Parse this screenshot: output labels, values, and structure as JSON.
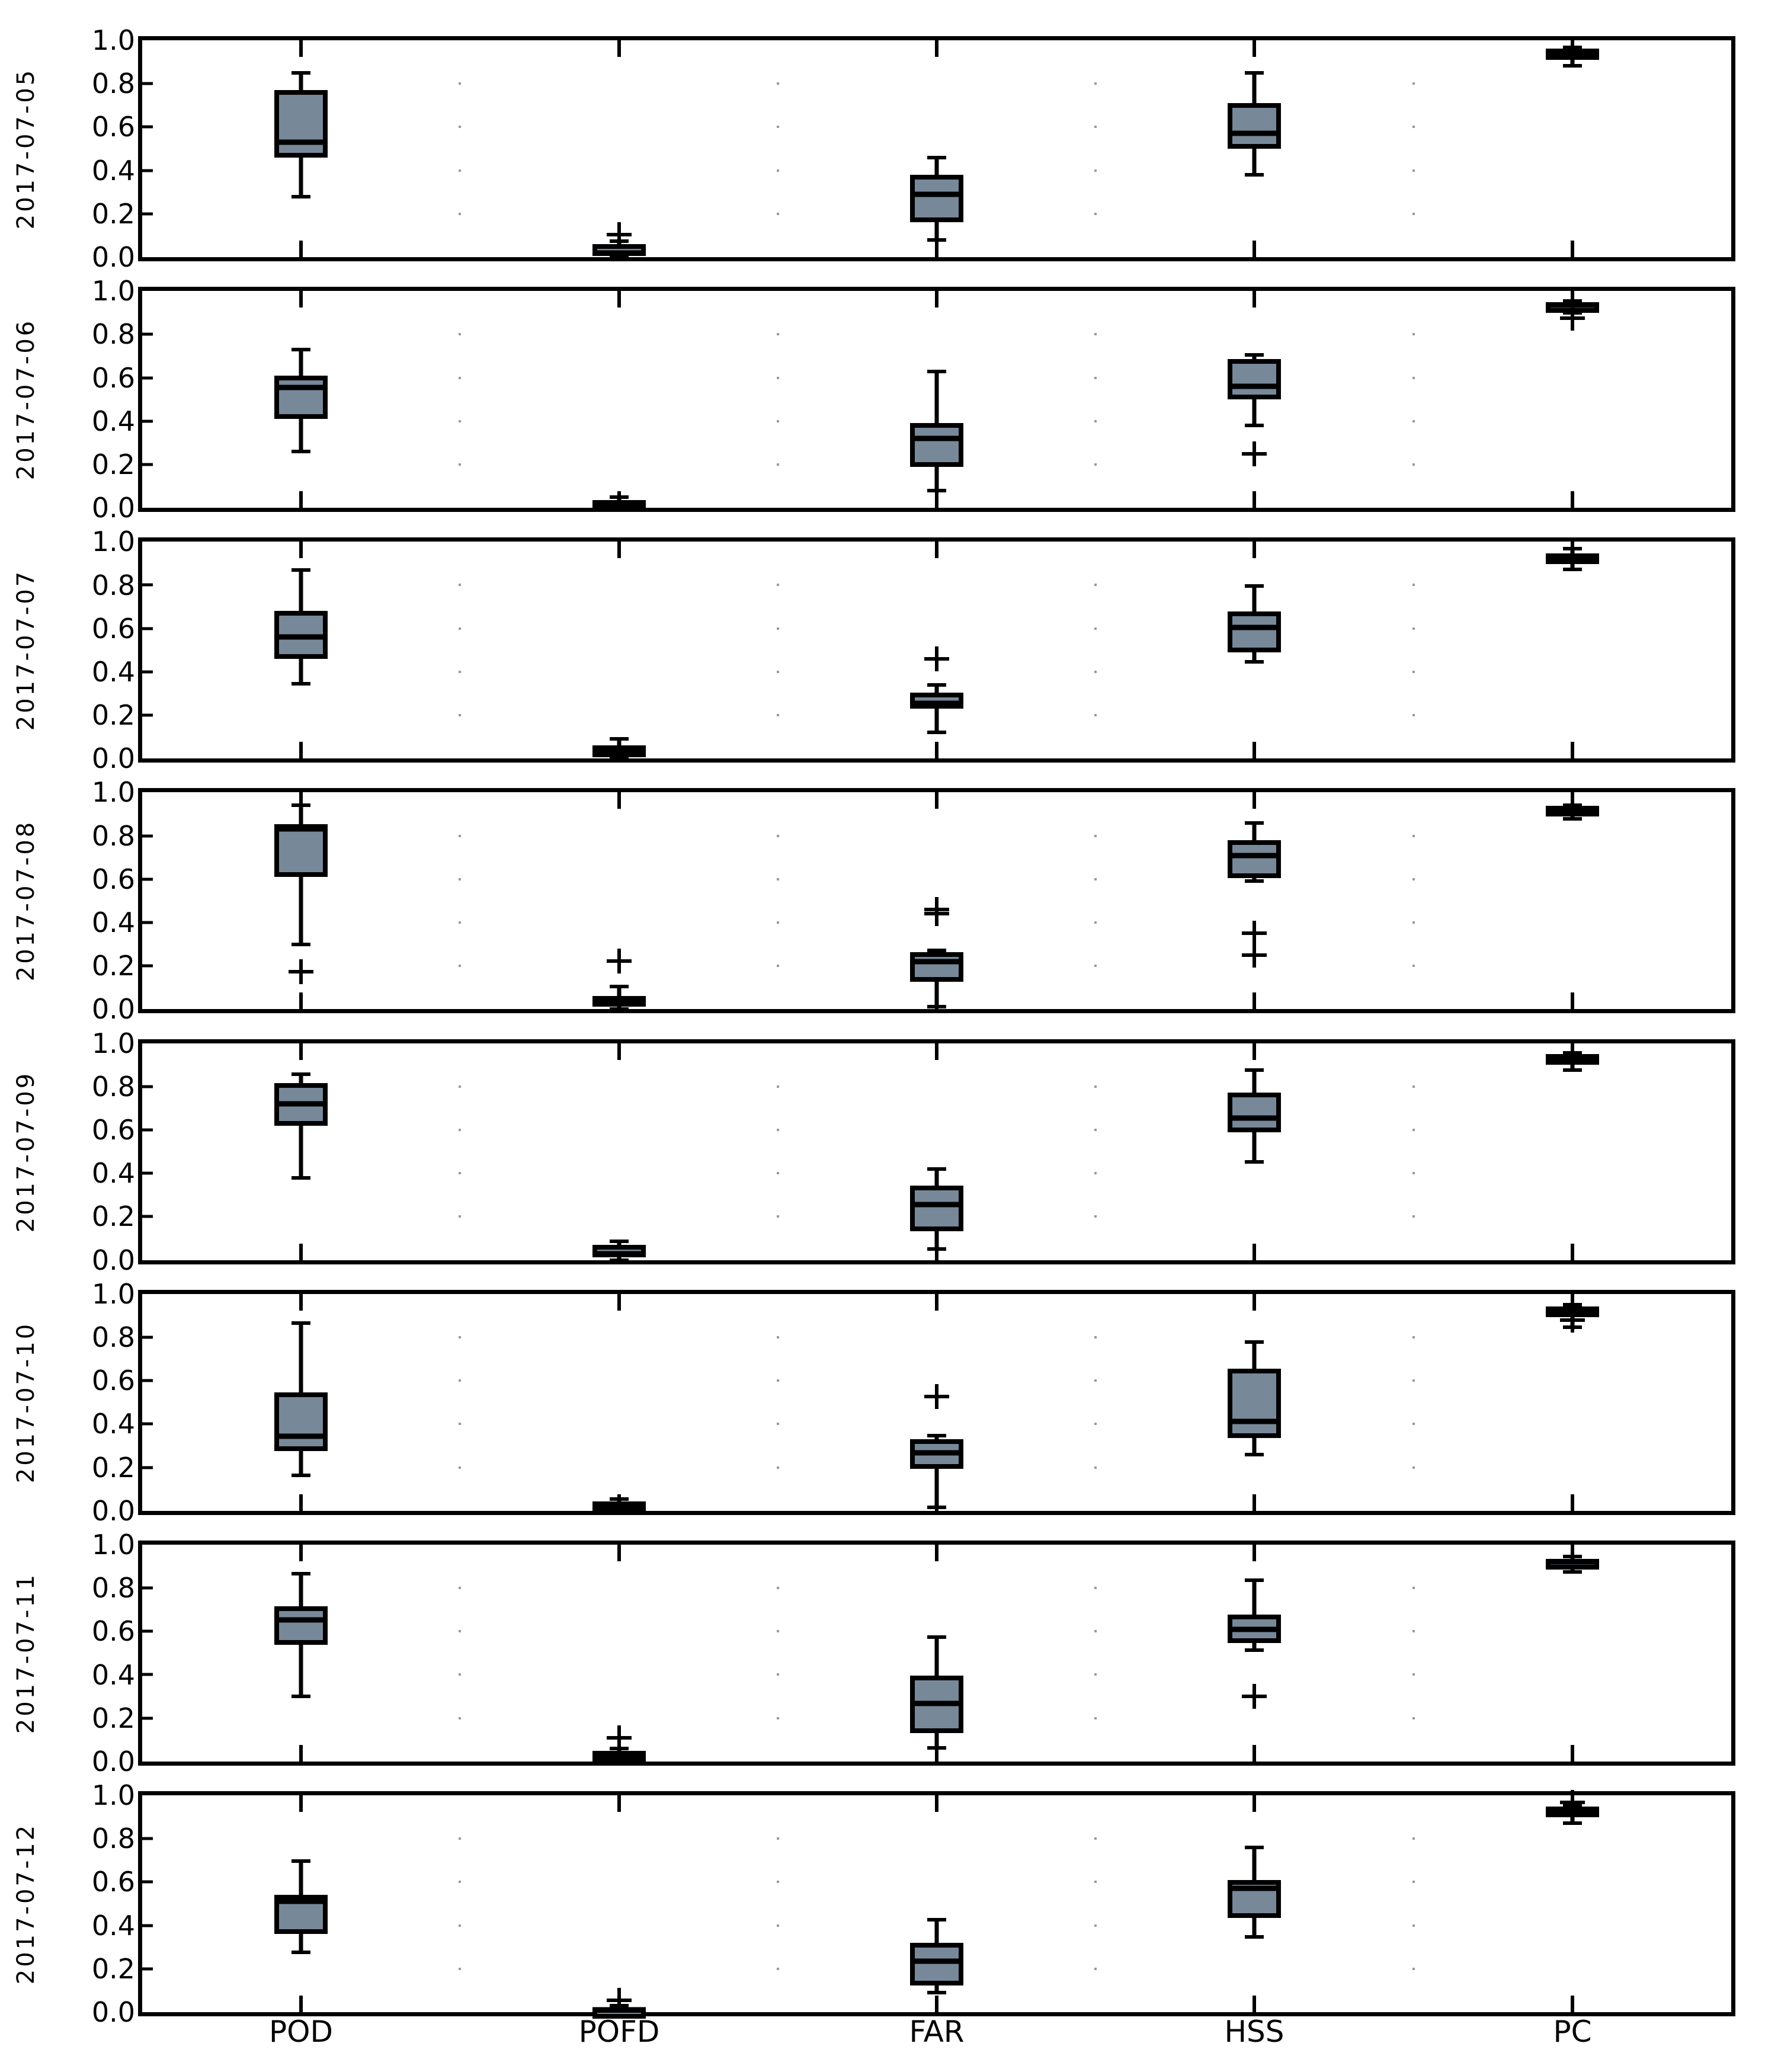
{
  "figure": {
    "background": "#ffffff"
  },
  "chart_data": {
    "type": "boxplot",
    "layout": "8 stacked daily panels, shared x categories",
    "categories": [
      "POD",
      "POFD",
      "FAR",
      "HSS",
      "PC"
    ],
    "ylim": [
      0.0,
      1.0
    ],
    "yticks": [
      "1.0",
      "0.8",
      "0.6",
      "0.4",
      "0.2",
      "0.0"
    ],
    "grid": "sparse dotted grid at 0.2 intervals",
    "box_fill": "#778899",
    "line_color": "#000000",
    "panels": [
      {
        "date": "2017-07-05",
        "boxes": [
          {
            "whislo": 0.28,
            "q1": 0.46,
            "med": 0.53,
            "q3": 0.77,
            "whishi": 0.85,
            "fliers": []
          },
          {
            "whislo": 0.0,
            "q1": 0.005,
            "med": 0.02,
            "q3": 0.06,
            "whishi": 0.075,
            "fliers": [
              0.105
            ]
          },
          {
            "whislo": 0.08,
            "q1": 0.16,
            "med": 0.29,
            "q3": 0.38,
            "whishi": 0.46,
            "fliers": []
          },
          {
            "whislo": 0.38,
            "q1": 0.5,
            "med": 0.57,
            "q3": 0.71,
            "whishi": 0.85,
            "fliers": []
          },
          {
            "whislo": 0.883,
            "q1": 0.91,
            "med": 0.943,
            "q3": 0.962,
            "whishi": 0.967,
            "fliers": []
          }
        ]
      },
      {
        "date": "2017-07-06",
        "boxes": [
          {
            "whislo": 0.26,
            "q1": 0.41,
            "med": 0.555,
            "q3": 0.61,
            "whishi": 0.73,
            "fliers": []
          },
          {
            "whislo": 0.0,
            "q1": 0.005,
            "med": 0.015,
            "q3": 0.035,
            "whishi": 0.05,
            "fliers": []
          },
          {
            "whislo": 0.08,
            "q1": 0.19,
            "med": 0.32,
            "q3": 0.39,
            "whishi": 0.63,
            "fliers": []
          },
          {
            "whislo": 0.38,
            "q1": 0.5,
            "med": 0.56,
            "q3": 0.685,
            "whishi": 0.705,
            "fliers": [
              0.25
            ]
          },
          {
            "whislo": 0.9,
            "q1": 0.915,
            "med": 0.935,
            "q3": 0.948,
            "whishi": 0.955,
            "fliers": [
              0.875
            ]
          }
        ]
      },
      {
        "date": "2017-07-07",
        "boxes": [
          {
            "whislo": 0.345,
            "q1": 0.46,
            "med": 0.56,
            "q3": 0.68,
            "whishi": 0.87,
            "fliers": []
          },
          {
            "whislo": 0.0,
            "q1": 0.005,
            "med": 0.03,
            "q3": 0.06,
            "whishi": 0.09,
            "fliers": []
          },
          {
            "whislo": 0.12,
            "q1": 0.23,
            "med": 0.255,
            "q3": 0.305,
            "whishi": 0.34,
            "fliers": [
              0.46
            ]
          },
          {
            "whislo": 0.447,
            "q1": 0.49,
            "med": 0.605,
            "q3": 0.678,
            "whishi": 0.795,
            "fliers": []
          },
          {
            "whislo": 0.872,
            "q1": 0.899,
            "med": 0.913,
            "q3": 0.945,
            "whishi": 0.967,
            "fliers": []
          }
        ]
      },
      {
        "date": "2017-07-08",
        "boxes": [
          {
            "whislo": 0.3,
            "q1": 0.61,
            "med": 0.833,
            "q3": 0.855,
            "whishi": 0.94,
            "fliers": [
              0.172
            ]
          },
          {
            "whislo": 0.0,
            "q1": 0.013,
            "med": 0.04,
            "q3": 0.06,
            "whishi": 0.104,
            "fliers": [
              0.222
            ]
          },
          {
            "whislo": 0.013,
            "q1": 0.126,
            "med": 0.22,
            "q3": 0.263,
            "whishi": 0.272,
            "fliers": [
              0.44,
              0.46
            ]
          },
          {
            "whislo": 0.59,
            "q1": 0.604,
            "med": 0.71,
            "q3": 0.78,
            "whishi": 0.86,
            "fliers": [
              0.35,
              0.25
            ]
          },
          {
            "whislo": 0.877,
            "q1": 0.896,
            "med": 0.92,
            "q3": 0.937,
            "whishi": 0.942,
            "fliers": []
          }
        ]
      },
      {
        "date": "2017-07-09",
        "boxes": [
          {
            "whislo": 0.38,
            "q1": 0.62,
            "med": 0.72,
            "q3": 0.816,
            "whishi": 0.857,
            "fliers": []
          },
          {
            "whislo": 0.0,
            "q1": 0.013,
            "med": 0.03,
            "q3": 0.07,
            "whishi": 0.085,
            "fliers": []
          },
          {
            "whislo": 0.052,
            "q1": 0.134,
            "med": 0.257,
            "q3": 0.342,
            "whishi": 0.42,
            "fliers": []
          },
          {
            "whislo": 0.452,
            "q1": 0.59,
            "med": 0.655,
            "q3": 0.773,
            "whishi": 0.877,
            "fliers": []
          },
          {
            "whislo": 0.877,
            "q1": 0.9,
            "med": 0.918,
            "q3": 0.95,
            "whishi": 0.955,
            "fliers": []
          }
        ]
      },
      {
        "date": "2017-07-10",
        "boxes": [
          {
            "whislo": 0.163,
            "q1": 0.275,
            "med": 0.343,
            "q3": 0.545,
            "whishi": 0.866,
            "fliers": []
          },
          {
            "whislo": 0.0,
            "q1": 0.005,
            "med": 0.02,
            "q3": 0.044,
            "whishi": 0.055,
            "fliers": []
          },
          {
            "whislo": 0.016,
            "q1": 0.193,
            "med": 0.267,
            "q3": 0.33,
            "whishi": 0.345,
            "fliers": [
              0.526
            ]
          },
          {
            "whislo": 0.259,
            "q1": 0.335,
            "med": 0.412,
            "q3": 0.654,
            "whishi": 0.777,
            "fliers": []
          },
          {
            "whislo": 0.845,
            "q1": 0.907,
            "med": 0.921,
            "q3": 0.943,
            "whishi": 0.95,
            "fliers": [
              0.88
            ]
          }
        ]
      },
      {
        "date": "2017-07-11",
        "boxes": [
          {
            "whislo": 0.3,
            "q1": 0.538,
            "med": 0.653,
            "q3": 0.716,
            "whishi": 0.866,
            "fliers": []
          },
          {
            "whislo": 0.0,
            "q1": 0.005,
            "med": 0.02,
            "q3": 0.05,
            "whishi": 0.06,
            "fliers": [
              0.11
            ]
          },
          {
            "whislo": 0.063,
            "q1": 0.131,
            "med": 0.268,
            "q3": 0.396,
            "whishi": 0.574,
            "fliers": []
          },
          {
            "whislo": 0.514,
            "q1": 0.546,
            "med": 0.609,
            "q3": 0.678,
            "whishi": 0.836,
            "fliers": [
              0.3
            ]
          },
          {
            "whislo": 0.875,
            "q1": 0.9,
            "med": 0.92,
            "q3": 0.935,
            "whishi": 0.945,
            "fliers": []
          }
        ]
      },
      {
        "date": "2017-07-12",
        "boxes": [
          {
            "whislo": 0.276,
            "q1": 0.36,
            "med": 0.51,
            "q3": 0.542,
            "whishi": 0.696,
            "fliers": []
          },
          {
            "whislo": 0.0,
            "q1": 0.0,
            "med": 0.01,
            "q3": 0.02,
            "whishi": 0.03,
            "fliers": [
              0.054
            ]
          },
          {
            "whislo": 0.09,
            "q1": 0.122,
            "med": 0.236,
            "q3": 0.32,
            "whishi": 0.425,
            "fliers": []
          },
          {
            "whislo": 0.347,
            "q1": 0.434,
            "med": 0.57,
            "q3": 0.61,
            "whishi": 0.759,
            "fliers": []
          },
          {
            "whislo": 0.872,
            "q1": 0.902,
            "med": 0.93,
            "q3": 0.948,
            "whishi": 0.955,
            "fliers": [
              0.967
            ]
          }
        ]
      }
    ]
  }
}
